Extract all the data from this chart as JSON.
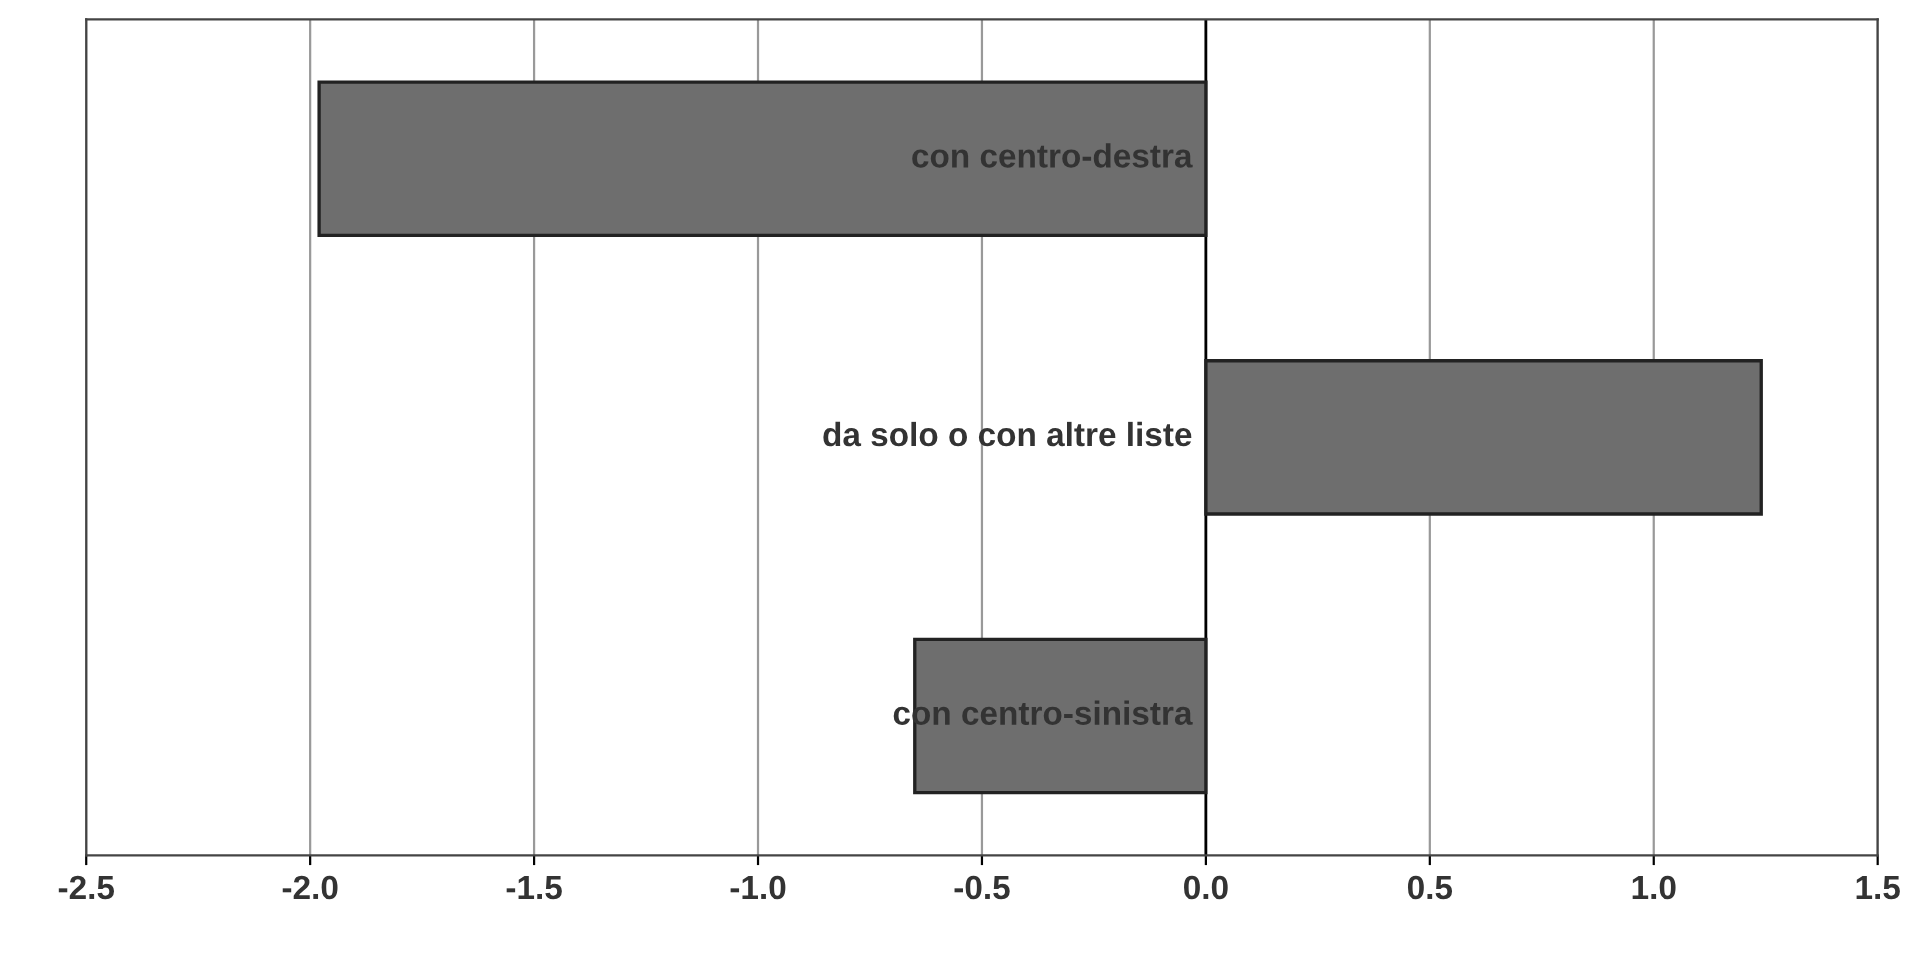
{
  "chart_data": {
    "type": "bar",
    "orientation": "horizontal",
    "categories": [
      "con centro-destra",
      "da solo o con altre liste",
      "con centro-sinistra"
    ],
    "values": [
      -1.98,
      1.24,
      -0.65
    ],
    "color": "#6e6e6e",
    "xlim": [
      -2.5,
      1.5
    ],
    "xticks": [
      {
        "value": -2.5,
        "label": "-2.5"
      },
      {
        "value": -2.0,
        "label": "-2.0"
      },
      {
        "value": -1.5,
        "label": "-1.5"
      },
      {
        "value": -1.0,
        "label": "-1.0"
      },
      {
        "value": -0.5,
        "label": "-0.5"
      },
      {
        "value": 0.0,
        "label": "0.0"
      },
      {
        "value": 0.5,
        "label": "0.5"
      },
      {
        "value": 1.0,
        "label": "1.0"
      },
      {
        "value": 1.5,
        "label": "1.5"
      }
    ],
    "grid": "x",
    "legend": false
  }
}
